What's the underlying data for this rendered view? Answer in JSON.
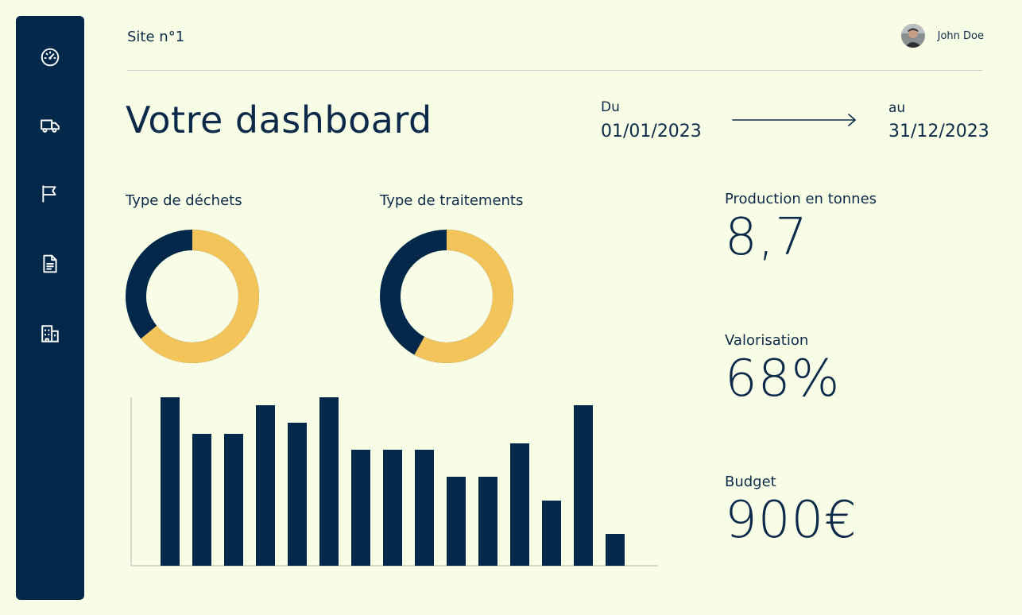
{
  "header": {
    "site": "Site n°1",
    "user_name": "John Doe",
    "title": "Votre dashboard"
  },
  "date_range": {
    "from_label": "Du",
    "from": "01/01/2023",
    "to_label": "au",
    "to": "31/12/2023"
  },
  "sidebar": {
    "items": [
      {
        "icon": "speedometer-icon"
      },
      {
        "icon": "truck-icon"
      },
      {
        "icon": "flag-icon"
      },
      {
        "icon": "document-icon"
      },
      {
        "icon": "building-icon"
      }
    ]
  },
  "colors": {
    "navy": "#03284a",
    "yellow": "#f2c45a",
    "background": "#f8fde6"
  },
  "donuts": {
    "waste_type": {
      "title": "Type de déchets",
      "yellow_share": 0.64
    },
    "treatment_type": {
      "title": "Type de traitements",
      "yellow_share": 0.58
    }
  },
  "chart_data": {
    "type": "bar",
    "categories": [
      "",
      "",
      "",
      "",
      "",
      "",
      "",
      "",
      "",
      "",
      "",
      "",
      "",
      "",
      ""
    ],
    "values": [
      212,
      166,
      166,
      202,
      180,
      212,
      146,
      146,
      146,
      112,
      112,
      154,
      82,
      202,
      40
    ],
    "ylim": [
      0,
      212
    ],
    "grid": false
  },
  "kpis": [
    {
      "label": "Production en tonnes",
      "value": "8,7"
    },
    {
      "label": "Valorisation",
      "value": "68%"
    },
    {
      "label": "Budget",
      "value": "900€"
    }
  ]
}
